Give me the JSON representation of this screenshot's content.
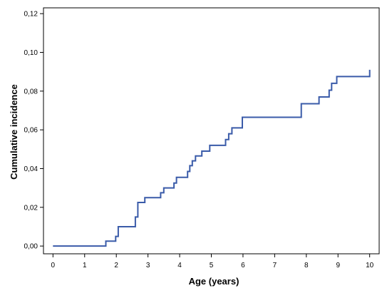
{
  "chart_data": {
    "type": "line",
    "title": "",
    "xlabel": "Age (years)",
    "ylabel": "Cumulative incidence",
    "xlim": [
      -0.3,
      10.3
    ],
    "ylim": [
      -0.004,
      0.123
    ],
    "x_ticks": [
      0,
      1,
      2,
      3,
      4,
      5,
      6,
      7,
      8,
      9,
      10
    ],
    "x_tick_labels": [
      "0",
      "1",
      "2",
      "3",
      "4",
      "5",
      "6",
      "7",
      "8",
      "9",
      "10"
    ],
    "y_ticks": [
      0.0,
      0.02,
      0.04,
      0.06,
      0.08,
      0.1,
      0.12
    ],
    "y_tick_labels": [
      "0,00",
      "0,02",
      "0,04",
      "0,06",
      "0,08",
      "0,10",
      "0,12"
    ],
    "grid": false,
    "legend": "none",
    "line_color": "#3a5ba9",
    "step": "post",
    "series": [
      {
        "x": [
          0,
          1.67,
          1.98,
          2.06,
          2.6,
          2.68,
          2.9,
          3.4,
          3.5,
          3.82,
          3.9,
          4.25,
          4.32,
          4.4,
          4.5,
          4.7,
          4.95,
          5.45,
          5.55,
          5.65,
          5.98,
          7.84,
          8.4,
          8.72,
          8.8,
          8.96,
          9.97,
          10.0
        ],
        "y": [
          0.0,
          0.0025,
          0.005,
          0.01,
          0.015,
          0.0225,
          0.025,
          0.0275,
          0.03,
          0.0325,
          0.0355,
          0.0385,
          0.0415,
          0.044,
          0.0465,
          0.049,
          0.052,
          0.055,
          0.058,
          0.061,
          0.0665,
          0.0735,
          0.077,
          0.0805,
          0.084,
          0.0875,
          0.0875,
          0.091
        ]
      }
    ]
  }
}
